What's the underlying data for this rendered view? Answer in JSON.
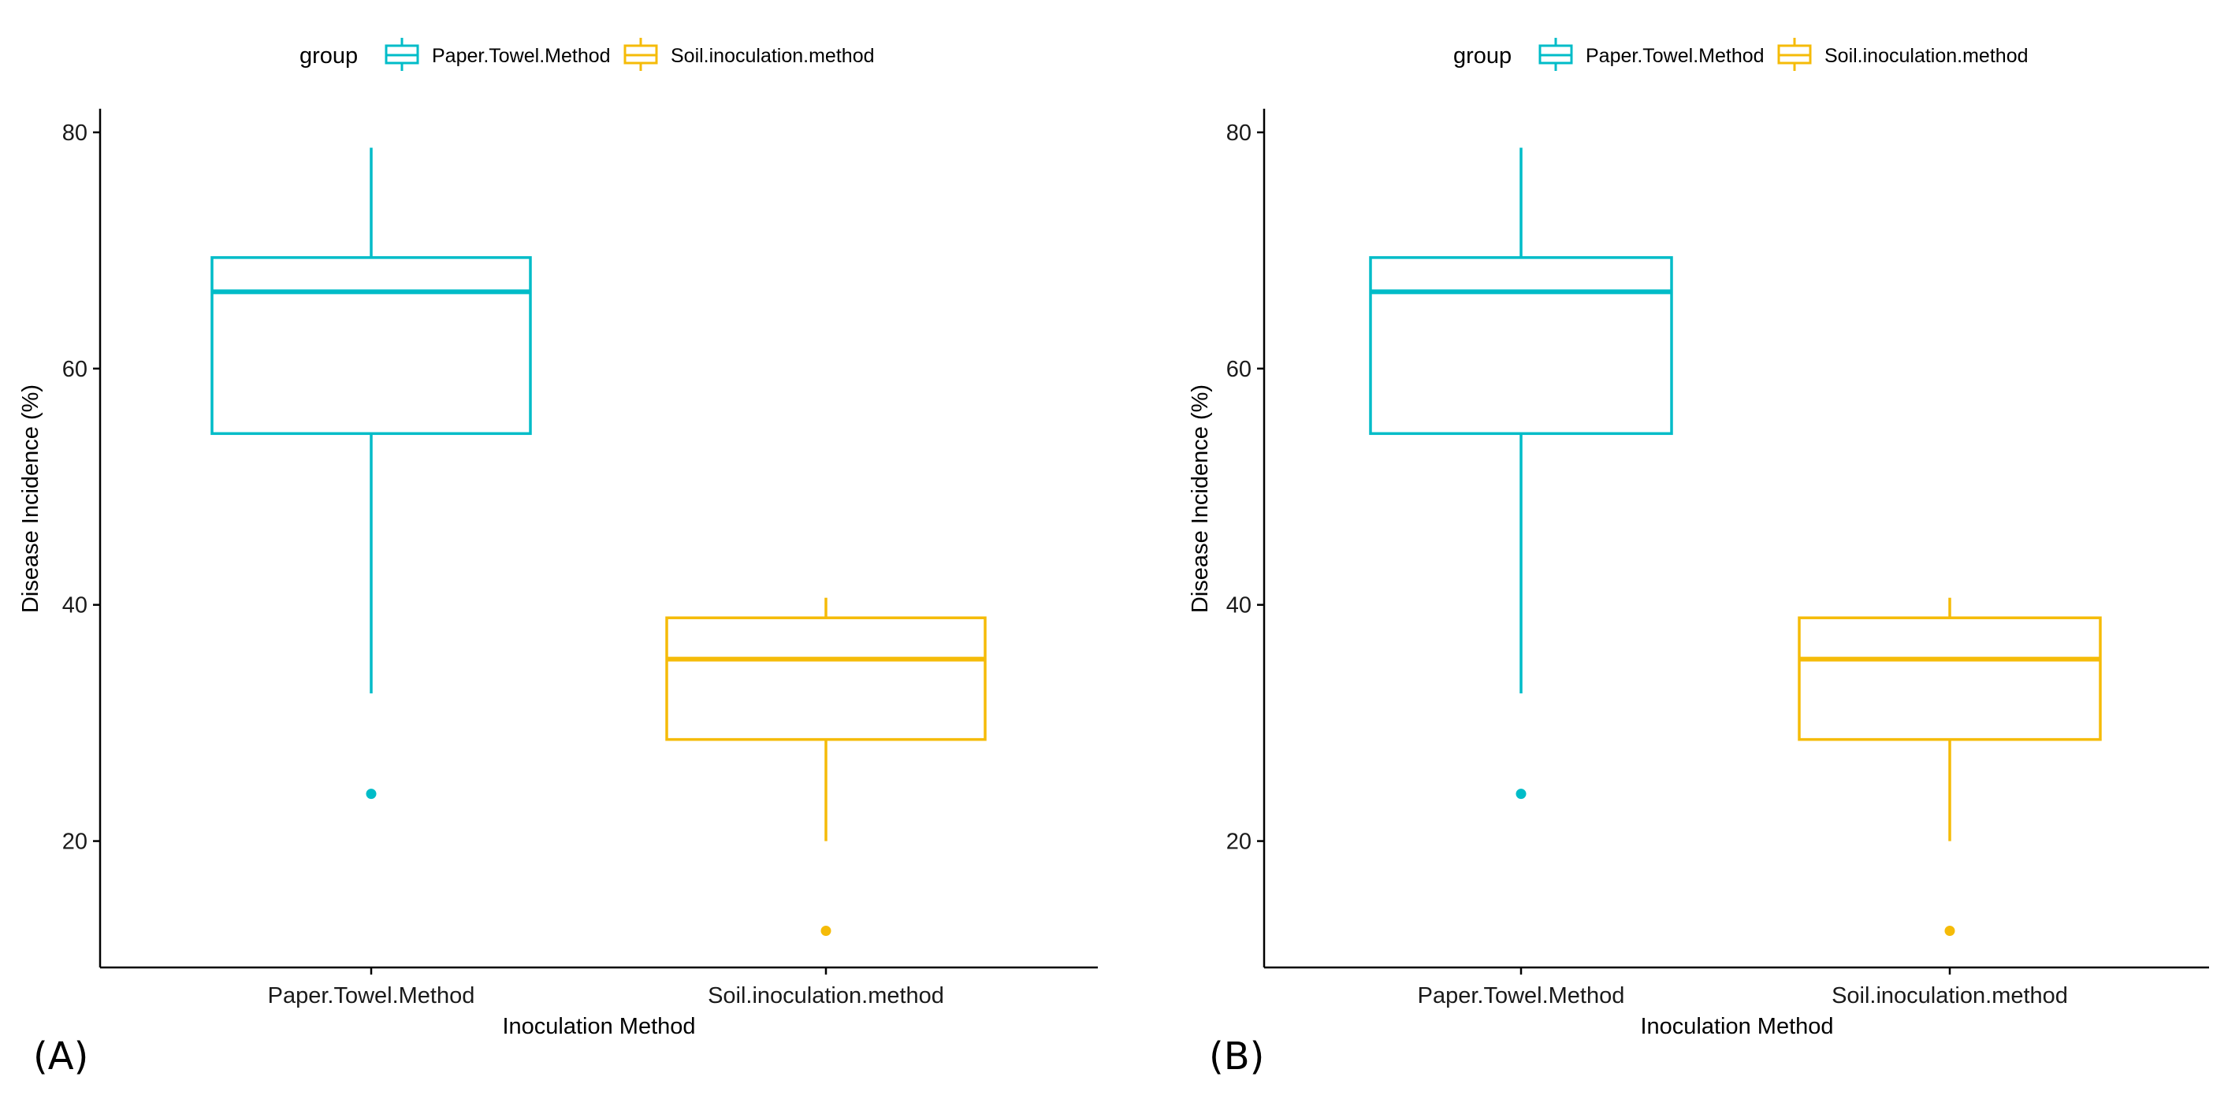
{
  "colors": {
    "Paper.Towel.Method": "#00BCC8",
    "Soil.inoculation.method": "#F5BB08",
    "axis": "#000000"
  },
  "chart_data": [
    {
      "type": "boxplot",
      "panel_label": "(A)",
      "legend": {
        "title": "group",
        "placement": "top",
        "entries": [
          "Paper.Towel.Method",
          "Soil.inoculation.method"
        ]
      },
      "xlabel": "Inoculation Method",
      "ylabel": "Disease Incidence (%)",
      "ylim": [
        9.3,
        82
      ],
      "yticks": [
        20,
        40,
        60,
        80
      ],
      "categories": [
        "Paper.Towel.Method",
        "Soil.inoculation.method"
      ],
      "series": [
        {
          "name": "Paper.Towel.Method",
          "whisker_low": 32.5,
          "q1": 54.5,
          "median": 66.5,
          "q3": 69.4,
          "whisker_high": 78.7,
          "outliers": [
            24.0
          ]
        },
        {
          "name": "Soil.inoculation.method",
          "whisker_low": 20.0,
          "q1": 28.6,
          "median": 35.4,
          "q3": 38.9,
          "whisker_high": 40.6,
          "outliers": [
            12.4
          ]
        }
      ]
    },
    {
      "type": "boxplot",
      "panel_label": "(B)",
      "legend": {
        "title": "group",
        "placement": "top",
        "entries": [
          "Paper.Towel.Method",
          "Soil.inoculation.method"
        ]
      },
      "xlabel": "Inoculation Method",
      "ylabel": "Disease Incidence (%)",
      "ylim": [
        9.3,
        82
      ],
      "yticks": [
        20,
        40,
        60,
        80
      ],
      "categories": [
        "Paper.Towel.Method",
        "Soil.inoculation.method"
      ],
      "series": [
        {
          "name": "Paper.Towel.Method",
          "whisker_low": 32.5,
          "q1": 54.5,
          "median": 66.5,
          "q3": 69.4,
          "whisker_high": 78.7,
          "outliers": [
            24.0
          ]
        },
        {
          "name": "Soil.inoculation.method",
          "whisker_low": 20.0,
          "q1": 28.6,
          "median": 35.4,
          "q3": 38.9,
          "whisker_high": 40.6,
          "outliers": [
            12.4
          ]
        }
      ]
    }
  ]
}
